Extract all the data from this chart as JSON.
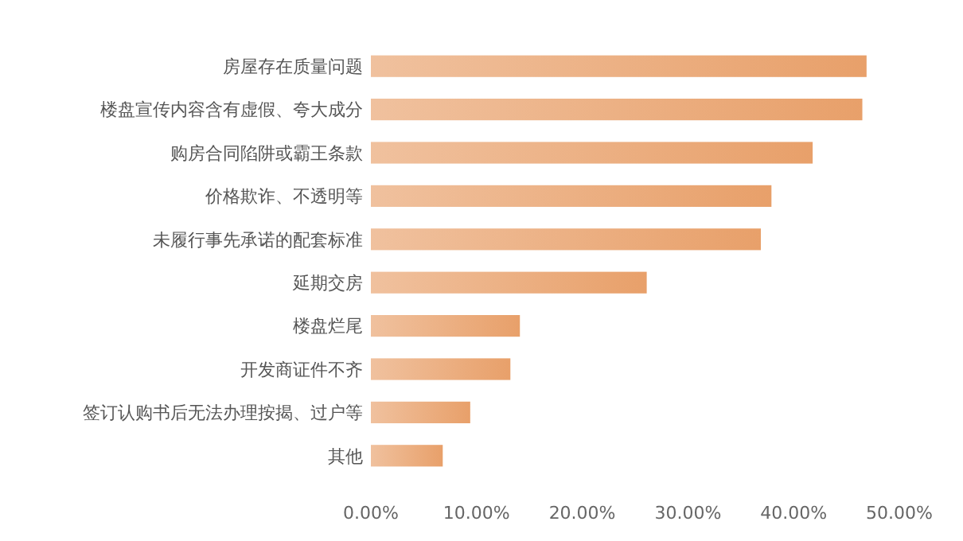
{
  "chart_data": {
    "type": "bar",
    "orientation": "horizontal",
    "categories": [
      "房屋存在质量问题",
      "楼盘宣传内容含有虚假、夸大成分",
      "购房合同陷阱或霸王条款",
      "价格欺诈、不透明等",
      "未履行事先承诺的配套标准",
      "延期交房",
      "楼盘烂尾",
      "开发商证件不齐",
      "签订认购书后无法办理按揭、过户等",
      "其他"
    ],
    "values": [
      46.9,
      46.5,
      41.8,
      37.9,
      36.9,
      26.1,
      14.1,
      13.2,
      9.4,
      6.8
    ],
    "color": "#e8a06a",
    "xlim": [
      0,
      50
    ],
    "xticks": [
      {
        "value": 0,
        "label": "0.00%"
      },
      {
        "value": 10,
        "label": "10.00%"
      },
      {
        "value": 20,
        "label": "20.00%"
      },
      {
        "value": 30,
        "label": "30.00%"
      },
      {
        "value": 40,
        "label": "40.00%"
      },
      {
        "value": 50,
        "label": "50.00%"
      }
    ],
    "grid": false
  }
}
